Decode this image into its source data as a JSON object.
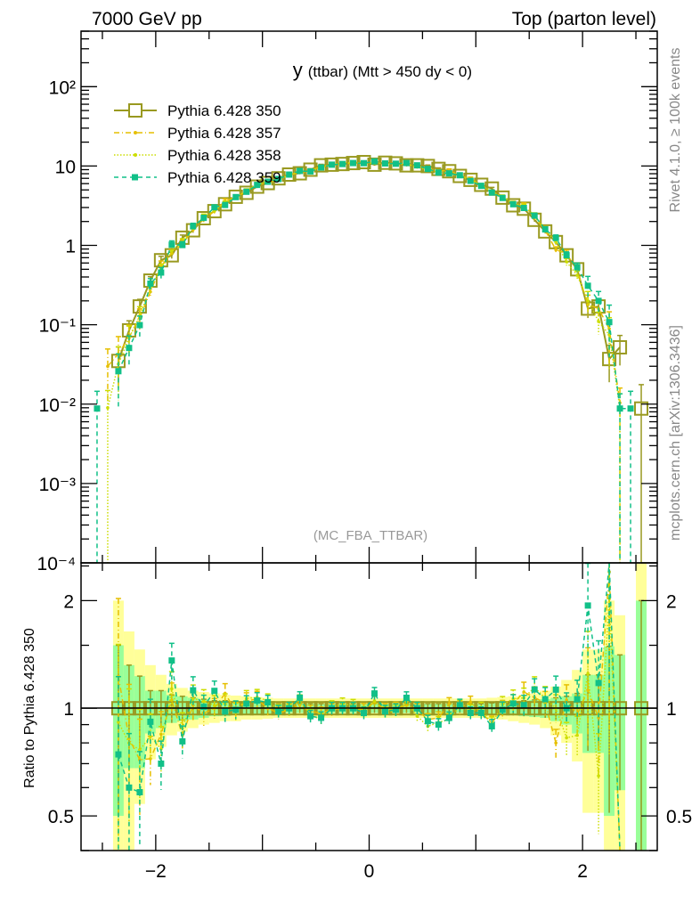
{
  "header": {
    "left": "7000 GeV pp",
    "right": "Top (parton level)"
  },
  "side_labels": {
    "rivet": "Rivet 4.1.0, ≥ 100k events",
    "mcplots": "mcplots.cern.ch [arXiv:1306.3436]"
  },
  "analysis_tag": "(MC_FBA_TTBAR)",
  "chart_data": {
    "type": "line",
    "title": {
      "main": "y",
      "sub": "(ttbar) (Mtt > 450 dy < 0)"
    },
    "xlim": [
      -2.7,
      2.7
    ],
    "ylim": [
      0.0001,
      500
    ],
    "yscale": "log",
    "xticks": [
      {
        "v": -2,
        "label": "−2"
      },
      {
        "v": 0,
        "label": "0"
      },
      {
        "v": 2,
        "label": "2"
      }
    ],
    "yticks": [
      {
        "v": 100,
        "label": "10²"
      },
      {
        "v": 10,
        "label": "10"
      },
      {
        "v": 1,
        "label": "1"
      },
      {
        "v": 0.1,
        "label": "10⁻¹"
      },
      {
        "v": 0.01,
        "label": "10⁻²"
      },
      {
        "v": 0.001,
        "label": "10⁻³"
      },
      {
        "v": 0.0001,
        "label": "10⁻⁴"
      }
    ],
    "legend_position": "top-left",
    "x": [
      -2.55,
      -2.45,
      -2.35,
      -2.25,
      -2.15,
      -2.05,
      -1.95,
      -1.85,
      -1.75,
      -1.65,
      -1.55,
      -1.45,
      -1.35,
      -1.25,
      -1.15,
      -1.05,
      -0.95,
      -0.85,
      -0.75,
      -0.65,
      -0.55,
      -0.45,
      -0.35,
      -0.25,
      -0.15,
      -0.05,
      0.05,
      0.15,
      0.25,
      0.35,
      0.45,
      0.55,
      0.65,
      0.75,
      0.85,
      0.95,
      1.05,
      1.15,
      1.25,
      1.35,
      1.45,
      1.55,
      1.65,
      1.75,
      1.85,
      1.95,
      2.05,
      2.15,
      2.25,
      2.35,
      2.45,
      2.55
    ],
    "series": [
      {
        "name": "Pythia 6.428 350",
        "color": "#999920",
        "style": "solid",
        "marker": "open-square",
        "values": [
          null,
          null,
          0.035,
          0.085,
          0.17,
          0.36,
          0.65,
          0.75,
          1.25,
          1.55,
          2.2,
          2.7,
          3.3,
          4.1,
          4.6,
          5.5,
          6.1,
          7.0,
          7.8,
          8.1,
          9.0,
          10.2,
          10.4,
          10.6,
          10.9,
          11.2,
          10.4,
          11.0,
          10.8,
          10.2,
          10.2,
          10.0,
          9.2,
          8.6,
          7.5,
          6.7,
          5.8,
          5.2,
          4.0,
          3.2,
          2.9,
          2.1,
          1.5,
          1.1,
          0.75,
          0.5,
          0.16,
          0.17,
          0.037,
          0.052,
          null,
          0.0088
        ]
      },
      {
        "name": "Pythia 6.428 357",
        "color": "#e6bf00",
        "style": "dashdot",
        "marker": "dot",
        "values": [
          null,
          0.03,
          0.043,
          0.07,
          0.122,
          0.26,
          0.55,
          0.79,
          1.05,
          1.58,
          2.13,
          2.7,
          3.63,
          4.02,
          4.83,
          5.83,
          6.1,
          6.79,
          7.72,
          8.26,
          8.82,
          9.89,
          10.3,
          10.6,
          10.9,
          11.1,
          10.8,
          10.9,
          10.8,
          10.4,
          10.1,
          9.3,
          8.65,
          8.86,
          7.5,
          6.97,
          5.63,
          4.73,
          4.0,
          3.3,
          3.22,
          2.25,
          1.55,
          0.88,
          0.79,
          0.48,
          0.18,
          0.16,
          0.089,
          0.0104,
          null,
          null
        ]
      },
      {
        "name": "Pythia 6.428 358",
        "color": "#ccdd00",
        "style": "dotted",
        "marker": "dot",
        "values": [
          null,
          0.009,
          0.032,
          0.068,
          0.13,
          0.3,
          0.5,
          0.85,
          1.1,
          1.65,
          2.3,
          2.75,
          3.4,
          4.0,
          4.9,
          5.9,
          6.4,
          6.9,
          7.7,
          8.5,
          8.6,
          9.5,
          10.5,
          10.9,
          11.1,
          10.9,
          10.9,
          10.7,
          10.6,
          10.6,
          9.7,
          8.9,
          8.4,
          8.0,
          7.6,
          6.6,
          5.8,
          4.7,
          4.1,
          3.4,
          3.1,
          2.4,
          1.6,
          1.1,
          0.62,
          0.42,
          0.2,
          0.11,
          0.075,
          0.0088,
          null,
          null
        ]
      },
      {
        "name": "Pythia 6.428 359",
        "color": "#11c088",
        "style": "dashed",
        "marker": "filled-square",
        "values": [
          0.0088,
          null,
          0.026,
          0.051,
          0.099,
          0.33,
          0.455,
          1.02,
          1.01,
          1.74,
          2.22,
          3.02,
          3.23,
          4.06,
          4.74,
          5.78,
          6.34,
          6.86,
          7.8,
          8.67,
          8.55,
          9.59,
          10.4,
          10.6,
          10.9,
          10.86,
          11.44,
          10.78,
          10.69,
          10.91,
          10.2,
          9.2,
          8.28,
          8.08,
          7.65,
          6.5,
          5.63,
          4.63,
          3.96,
          3.3,
          2.96,
          2.37,
          1.59,
          1.24,
          0.75,
          0.53,
          0.31,
          0.2,
          0.108,
          0.0088,
          0.0088,
          null
        ]
      }
    ],
    "ratio": {
      "ylabel": "Ratio to Pythia 6.428 350",
      "reference": "Pythia 6.428 350",
      "ylim": [
        0.4,
        2.55
      ],
      "yscale": "log",
      "yticks": [
        {
          "v": 2,
          "label": "2"
        },
        {
          "v": 1,
          "label": "1"
        },
        {
          "v": 0.5,
          "label": "0.5"
        }
      ],
      "band_colors": {
        "inner": "#99ff99",
        "outer": "#ffff99"
      },
      "bands": [
        null,
        null,
        [
          0.5,
          1.5,
          0.3,
          2.0
        ],
        [
          0.68,
          1.32,
          0.3,
          1.64
        ],
        [
          0.68,
          1.23,
          0.54,
          1.46
        ],
        [
          0.85,
          1.12,
          0.72,
          1.32
        ],
        [
          0.88,
          1.12,
          0.78,
          1.24
        ],
        [
          0.91,
          1.09,
          0.84,
          1.17
        ],
        [
          0.92,
          1.08,
          0.86,
          1.14
        ],
        [
          0.93,
          1.07,
          0.88,
          1.12
        ],
        [
          0.94,
          1.06,
          0.9,
          1.11
        ],
        [
          0.95,
          1.05,
          0.91,
          1.1
        ],
        [
          0.95,
          1.05,
          0.92,
          1.09
        ],
        [
          0.96,
          1.045,
          0.92,
          1.085
        ],
        [
          0.96,
          1.04,
          0.93,
          1.08
        ],
        [
          0.96,
          1.04,
          0.93,
          1.075
        ],
        [
          0.965,
          1.035,
          0.935,
          1.07
        ],
        [
          0.97,
          1.03,
          0.94,
          1.065
        ],
        [
          0.97,
          1.03,
          0.94,
          1.065
        ],
        [
          0.97,
          1.03,
          0.94,
          1.065
        ],
        [
          0.97,
          1.03,
          0.94,
          1.065
        ],
        [
          0.97,
          1.03,
          0.94,
          1.065
        ],
        [
          0.97,
          1.03,
          0.94,
          1.065
        ],
        [
          0.97,
          1.03,
          0.94,
          1.065
        ],
        [
          0.97,
          1.03,
          0.94,
          1.065
        ],
        [
          0.97,
          1.03,
          0.94,
          1.065
        ],
        [
          0.97,
          1.03,
          0.94,
          1.065
        ],
        [
          0.97,
          1.03,
          0.94,
          1.065
        ],
        [
          0.97,
          1.03,
          0.94,
          1.065
        ],
        [
          0.97,
          1.03,
          0.94,
          1.065
        ],
        [
          0.97,
          1.03,
          0.94,
          1.065
        ],
        [
          0.97,
          1.03,
          0.94,
          1.065
        ],
        [
          0.97,
          1.03,
          0.94,
          1.065
        ],
        [
          0.97,
          1.03,
          0.94,
          1.065
        ],
        [
          0.97,
          1.03,
          0.94,
          1.065
        ],
        [
          0.97,
          1.03,
          0.94,
          1.065
        ],
        [
          0.97,
          1.03,
          0.94,
          1.065
        ],
        [
          0.965,
          1.035,
          0.935,
          1.07
        ],
        [
          0.96,
          1.04,
          0.93,
          1.075
        ],
        [
          0.955,
          1.045,
          0.92,
          1.08
        ],
        [
          0.95,
          1.05,
          0.91,
          1.09
        ],
        [
          0.945,
          1.055,
          0.9,
          1.1
        ],
        [
          0.94,
          1.06,
          0.88,
          1.12
        ],
        [
          0.92,
          1.07,
          0.84,
          1.15
        ],
        [
          0.9,
          1.08,
          0.8,
          1.2
        ],
        [
          0.85,
          1.1,
          0.71,
          1.28
        ],
        [
          0.75,
          1.24,
          0.51,
          1.46
        ],
        [
          0.75,
          1.24,
          0.51,
          1.46
        ],
        [
          0.5,
          1.49,
          0.3,
          2.0
        ],
        [
          0.59,
          1.41,
          0.3,
          1.82
        ],
        null,
        [
          0.3,
          2.0,
          0.3,
          3.0
        ]
      ]
    }
  }
}
